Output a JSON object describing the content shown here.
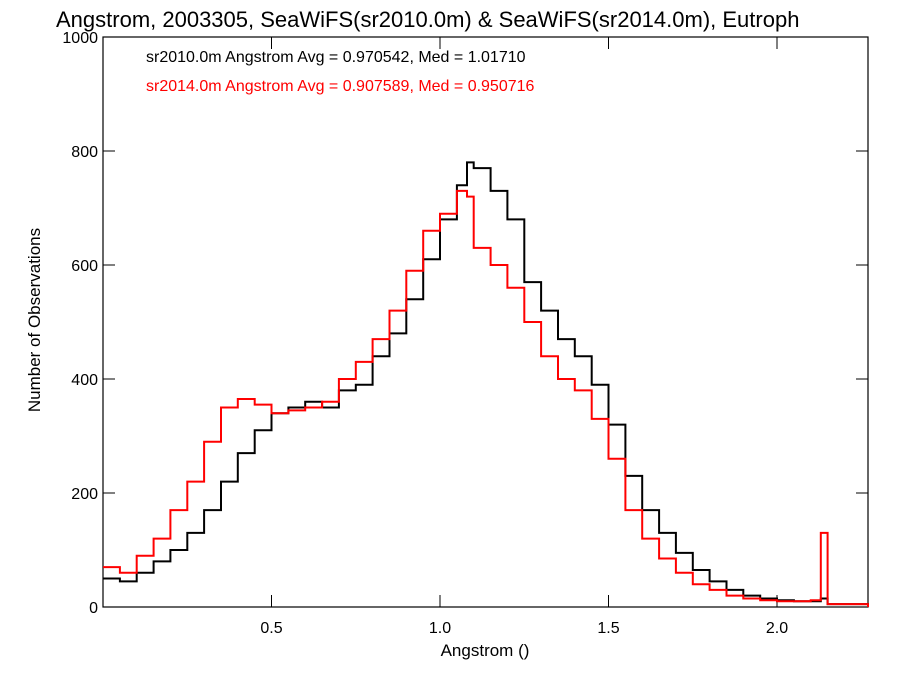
{
  "chart_data": {
    "type": "line",
    "title": "Angstrom, 2003305, SeaWiFS(sr2010.0m) & SeaWiFS(sr2014.0m), Eutroph",
    "xlabel": "Angstrom ()",
    "ylabel": "Number of Observations",
    "xlim": [
      0.0,
      2.27
    ],
    "ylim": [
      0,
      1000
    ],
    "xticks": [
      0.5,
      1.0,
      1.5,
      2.0
    ],
    "xtick_labels": [
      "0.5",
      "1.0",
      "1.5",
      "2.0"
    ],
    "yticks": [
      0,
      200,
      400,
      600,
      800,
      1000
    ],
    "ytick_labels": [
      "0",
      "200",
      "400",
      "600",
      "800",
      "1000"
    ],
    "grid": false,
    "annotations": [
      {
        "text": "sr2010.0m Angstrom Avg = 0.970542, Med = 1.01710",
        "color": "#000000"
      },
      {
        "text": "sr2014.0m Angstrom Avg = 0.907589, Med = 0.950716",
        "color": "#ff0000"
      }
    ],
    "series": [
      {
        "color": "#000000",
        "points": [
          [
            0.0,
            50
          ],
          [
            0.05,
            45
          ],
          [
            0.1,
            60
          ],
          [
            0.15,
            80
          ],
          [
            0.2,
            100
          ],
          [
            0.25,
            130
          ],
          [
            0.3,
            170
          ],
          [
            0.35,
            220
          ],
          [
            0.4,
            270
          ],
          [
            0.45,
            310
          ],
          [
            0.5,
            340
          ],
          [
            0.55,
            350
          ],
          [
            0.6,
            360
          ],
          [
            0.65,
            350
          ],
          [
            0.7,
            380
          ],
          [
            0.75,
            390
          ],
          [
            0.8,
            440
          ],
          [
            0.85,
            480
          ],
          [
            0.9,
            540
          ],
          [
            0.95,
            610
          ],
          [
            1.0,
            680
          ],
          [
            1.05,
            740
          ],
          [
            1.08,
            780
          ],
          [
            1.1,
            770
          ],
          [
            1.15,
            730
          ],
          [
            1.2,
            680
          ],
          [
            1.25,
            570
          ],
          [
            1.3,
            520
          ],
          [
            1.35,
            470
          ],
          [
            1.4,
            440
          ],
          [
            1.45,
            390
          ],
          [
            1.5,
            320
          ],
          [
            1.55,
            230
          ],
          [
            1.6,
            170
          ],
          [
            1.65,
            130
          ],
          [
            1.7,
            95
          ],
          [
            1.75,
            65
          ],
          [
            1.8,
            45
          ],
          [
            1.85,
            30
          ],
          [
            1.9,
            20
          ],
          [
            1.95,
            15
          ],
          [
            2.0,
            12
          ],
          [
            2.05,
            10
          ],
          [
            2.1,
            10
          ],
          [
            2.13,
            15
          ],
          [
            2.15,
            5
          ],
          [
            2.27,
            0
          ]
        ]
      },
      {
        "color": "#ff0000",
        "points": [
          [
            0.0,
            70
          ],
          [
            0.05,
            60
          ],
          [
            0.1,
            90
          ],
          [
            0.15,
            120
          ],
          [
            0.2,
            170
          ],
          [
            0.25,
            220
          ],
          [
            0.3,
            290
          ],
          [
            0.35,
            350
          ],
          [
            0.4,
            365
          ],
          [
            0.45,
            355
          ],
          [
            0.5,
            340
          ],
          [
            0.55,
            345
          ],
          [
            0.6,
            350
          ],
          [
            0.65,
            360
          ],
          [
            0.7,
            400
          ],
          [
            0.75,
            430
          ],
          [
            0.8,
            470
          ],
          [
            0.85,
            520
          ],
          [
            0.9,
            590
          ],
          [
            0.95,
            660
          ],
          [
            1.0,
            690
          ],
          [
            1.05,
            730
          ],
          [
            1.08,
            720
          ],
          [
            1.1,
            630
          ],
          [
            1.15,
            600
          ],
          [
            1.2,
            560
          ],
          [
            1.25,
            500
          ],
          [
            1.3,
            440
          ],
          [
            1.35,
            400
          ],
          [
            1.4,
            380
          ],
          [
            1.45,
            330
          ],
          [
            1.5,
            260
          ],
          [
            1.55,
            170
          ],
          [
            1.6,
            120
          ],
          [
            1.65,
            85
          ],
          [
            1.7,
            60
          ],
          [
            1.75,
            40
          ],
          [
            1.8,
            30
          ],
          [
            1.85,
            20
          ],
          [
            1.9,
            15
          ],
          [
            1.95,
            12
          ],
          [
            2.0,
            10
          ],
          [
            2.05,
            10
          ],
          [
            2.1,
            12
          ],
          [
            2.13,
            130
          ],
          [
            2.15,
            5
          ],
          [
            2.27,
            0
          ]
        ]
      }
    ]
  }
}
